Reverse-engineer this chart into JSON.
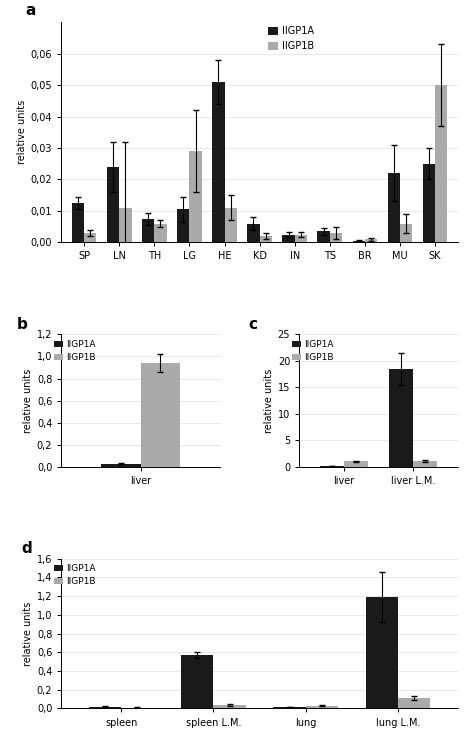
{
  "panel_a": {
    "categories": [
      "SP",
      "LN",
      "TH",
      "LG",
      "HE",
      "KD",
      "IN",
      "TS",
      "BR",
      "MU",
      "SK"
    ],
    "iigp1a_values": [
      0.0125,
      0.024,
      0.0075,
      0.0105,
      0.051,
      0.006,
      0.0025,
      0.0035,
      0.0005,
      0.022,
      0.025
    ],
    "iigp1b_values": [
      0.003,
      0.011,
      0.006,
      0.029,
      0.011,
      0.002,
      0.0025,
      0.003,
      0.001,
      0.006,
      0.05
    ],
    "iigp1a_err": [
      0.002,
      0.008,
      0.002,
      0.004,
      0.007,
      0.002,
      0.0008,
      0.001,
      0.0003,
      0.009,
      0.005
    ],
    "iigp1b_err": [
      0.001,
      0.021,
      0.001,
      0.013,
      0.004,
      0.001,
      0.0008,
      0.002,
      0.0005,
      0.003,
      0.013
    ],
    "ylim": [
      0,
      0.07
    ],
    "yticks": [
      0.0,
      0.01,
      0.02,
      0.03,
      0.04,
      0.05,
      0.06
    ],
    "ylabel": "relative units",
    "label": "a"
  },
  "panel_b": {
    "categories": [
      "liver"
    ],
    "iigp1a_values": [
      0.025
    ],
    "iigp1b_values": [
      0.94
    ],
    "iigp1a_err": [
      0.005
    ],
    "iigp1b_err": [
      0.08
    ],
    "ylim": [
      0,
      1.2
    ],
    "yticks": [
      0.0,
      0.2,
      0.4,
      0.6,
      0.8,
      1.0,
      1.2
    ],
    "ylabel": "relative units",
    "label": "b"
  },
  "panel_c": {
    "categories": [
      "liver",
      "liver L.M."
    ],
    "iigp1a_values": [
      0.15,
      18.5
    ],
    "iigp1b_values": [
      1.0,
      1.1
    ],
    "iigp1a_err": [
      0.05,
      3.0
    ],
    "iigp1b_err": [
      0.1,
      0.15
    ],
    "ylim": [
      0,
      25
    ],
    "yticks": [
      0,
      5,
      10,
      15,
      20,
      25
    ],
    "ylabel": "relative units",
    "label": "c"
  },
  "panel_d": {
    "categories": [
      "spleen",
      "spleen L.M.",
      "lung",
      "lung L.M."
    ],
    "iigp1a_values": [
      0.02,
      0.57,
      0.015,
      1.19
    ],
    "iigp1b_values": [
      0.01,
      0.04,
      0.03,
      0.11
    ],
    "iigp1a_err": [
      0.005,
      0.03,
      0.004,
      0.27
    ],
    "iigp1b_err": [
      0.002,
      0.01,
      0.005,
      0.02
    ],
    "ylim": [
      0,
      1.6
    ],
    "yticks": [
      0.0,
      0.2,
      0.4,
      0.6,
      0.8,
      1.0,
      1.2,
      1.4,
      1.6
    ],
    "ylabel": "relative units",
    "label": "d"
  },
  "bar_width": 0.35,
  "color_a": "#1a1a1a",
  "color_b": "#aaaaaa",
  "legend_labels": [
    "IIGP1A",
    "IIGP1B"
  ],
  "bg_color": "#ffffff"
}
